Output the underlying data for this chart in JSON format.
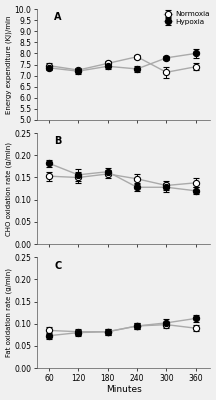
{
  "x": [
    60,
    120,
    180,
    240,
    300,
    360
  ],
  "panel_A": {
    "label": "A",
    "ylabel": "Energy expenditure (KJ)/min",
    "ylim": [
      5.0,
      10.0
    ],
    "yticks": [
      5.0,
      5.5,
      6.0,
      6.5,
      7.0,
      7.5,
      8.0,
      8.5,
      9.0,
      9.5,
      10.0
    ],
    "normoxia_y": [
      7.45,
      7.25,
      7.55,
      7.85,
      7.15,
      7.4
    ],
    "normoxia_err": [
      0.12,
      0.1,
      0.13,
      0.1,
      0.25,
      0.15
    ],
    "hypoxia_y": [
      7.35,
      7.2,
      7.42,
      7.3,
      7.8,
      8.0
    ],
    "hypoxia_err": [
      0.1,
      0.12,
      0.1,
      0.12,
      0.1,
      0.22
    ]
  },
  "panel_B": {
    "label": "B",
    "ylabel": "CHO oxidation rate (g/min)",
    "ylim": [
      0.0,
      0.25
    ],
    "yticks": [
      0.0,
      0.05,
      0.1,
      0.15,
      0.2,
      0.25
    ],
    "normoxia_y": [
      0.153,
      0.15,
      0.158,
      0.147,
      0.132,
      0.138
    ],
    "normoxia_err": [
      0.01,
      0.013,
      0.01,
      0.01,
      0.01,
      0.01
    ],
    "hypoxia_y": [
      0.182,
      0.156,
      0.163,
      0.128,
      0.128,
      0.12
    ],
    "hypoxia_err": [
      0.008,
      0.013,
      0.008,
      0.008,
      0.01,
      0.008
    ]
  },
  "panel_C": {
    "label": "C",
    "ylabel": "Fat oxidation rate (g/min)",
    "ylim": [
      0.0,
      0.25
    ],
    "yticks": [
      0.0,
      0.05,
      0.1,
      0.15,
      0.2,
      0.25
    ],
    "normoxia_y": [
      0.085,
      0.082,
      0.082,
      0.095,
      0.098,
      0.09
    ],
    "normoxia_err": [
      0.007,
      0.007,
      0.007,
      0.007,
      0.007,
      0.007
    ],
    "hypoxia_y": [
      0.073,
      0.08,
      0.082,
      0.095,
      0.102,
      0.112
    ],
    "hypoxia_err": [
      0.007,
      0.007,
      0.007,
      0.007,
      0.008,
      0.008
    ]
  },
  "xlabel": "Minutes",
  "normoxia_label": "Normoxia",
  "hypoxia_label": "Hypoxia",
  "line_color": "#aaaaaa",
  "marker_size": 4.5,
  "linewidth": 1.0,
  "capsize": 2.0,
  "elinewidth": 0.7,
  "bg_color": "#f0f0f0"
}
